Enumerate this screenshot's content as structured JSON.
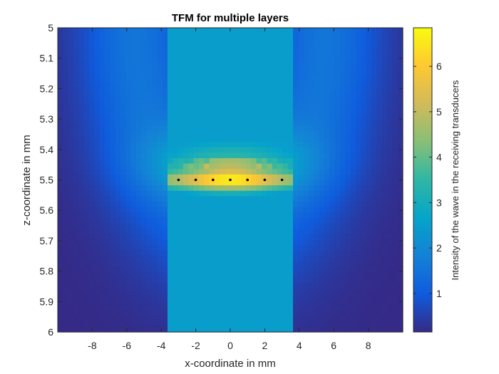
{
  "chart_data": {
    "type": "heatmap",
    "title": "TFM for multiple layers",
    "xlabel": "x-coordinate in mm",
    "ylabel": "z-coordinate in mm",
    "colorbar_label": "Intensity of the wave in the receiving transducers",
    "colormap": "parula",
    "xlim": [
      -10,
      10
    ],
    "ylim": [
      5,
      6
    ],
    "y_direction": "reverse",
    "clim": [
      0.15,
      6.85
    ],
    "x_ticks": [
      -8,
      -6,
      -4,
      -2,
      0,
      2,
      4,
      6,
      8
    ],
    "x_tick_labels": [
      "-8",
      "-6",
      "-4",
      "-2",
      "0",
      "2",
      "4",
      "6",
      "8"
    ],
    "y_ticks": [
      5,
      5.1,
      5.2,
      5.3,
      5.4,
      5.5,
      5.6,
      5.7,
      5.8,
      5.9,
      6
    ],
    "y_tick_labels": [
      "5",
      "5.1",
      "5.2",
      "5.3",
      "5.4",
      "5.5",
      "5.6",
      "5.7",
      "5.8",
      "5.9",
      "6"
    ],
    "colorbar_ticks": [
      1,
      2,
      3,
      4,
      5,
      6
    ],
    "colorbar_tick_labels": [
      "1",
      "2",
      "3",
      "4",
      "5",
      "6"
    ],
    "grid": false,
    "colors": {
      "parula": [
        "#352A87",
        "#0F5CDD",
        "#1481D6",
        "#06A4CA",
        "#2EB7A4",
        "#87BF77",
        "#D1BB59",
        "#FEC832",
        "#F9FB0E"
      ]
    },
    "markers": {
      "x": [
        -3,
        -2,
        -1,
        0,
        1,
        2,
        3
      ],
      "z": [
        5.5,
        5.5,
        5.5,
        5.5,
        5.5,
        5.5,
        5.5
      ],
      "color": "#000000"
    },
    "intensity_field": {
      "grid_x": 66,
      "grid_z": 56,
      "background_min": 0.15,
      "u_shape_peak": 1.55,
      "u_shape_center_x": 0,
      "u_shape_center_z": 5.0,
      "hotspot_center_z": 5.5,
      "hotspot_center_x": 0,
      "hotspot_half_width_x": 3.4,
      "hotspot_peak": 6.85
    }
  }
}
